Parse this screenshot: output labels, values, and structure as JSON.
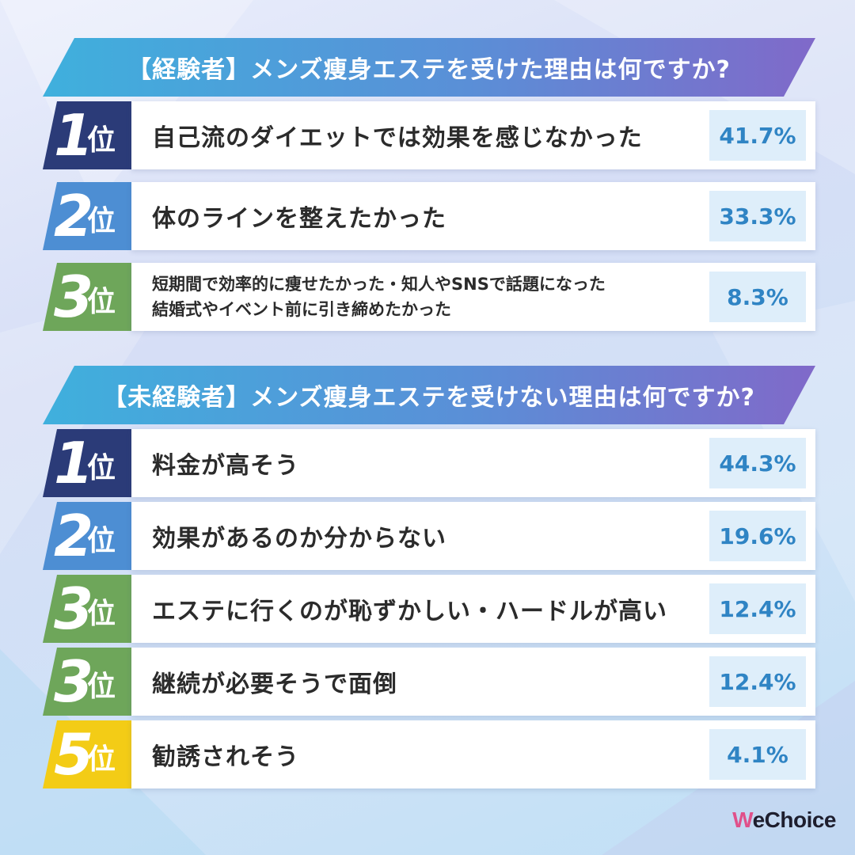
{
  "chart_data": [
    {
      "type": "table",
      "title": "【経験者】メンズ痩身エステを受けた理由は何ですか?",
      "rows": [
        {
          "rank": "1",
          "suffix": "位",
          "label": "自己流のダイエットでは効果を感じなかった",
          "value": 41.7,
          "value_label": "41.7%",
          "color": "#2b3b78"
        },
        {
          "rank": "2",
          "suffix": "位",
          "label": "体のラインを整えたかった",
          "value": 33.3,
          "value_label": "33.3%",
          "color": "#4d8ed3"
        },
        {
          "rank": "3",
          "suffix": "位",
          "label": "短期間で効率的に痩せたかった・知人やSNSで話題になった\n結婚式やイベント前に引き締めたかった",
          "value": 8.3,
          "value_label": "8.3%",
          "color": "#6ea65a"
        }
      ]
    },
    {
      "type": "table",
      "title": "【未経験者】メンズ痩身エステを受けない理由は何ですか?",
      "rows": [
        {
          "rank": "1",
          "suffix": "位",
          "label": "料金が高そう",
          "value": 44.3,
          "value_label": "44.3%",
          "color": "#2b3b78"
        },
        {
          "rank": "2",
          "suffix": "位",
          "label": "効果があるのか分からない",
          "value": 19.6,
          "value_label": "19.6%",
          "color": "#4d8ed3"
        },
        {
          "rank": "3",
          "suffix": "位",
          "label": "エステに行くのが恥ずかしい・ハードルが高い",
          "value": 12.4,
          "value_label": "12.4%",
          "color": "#6ea65a"
        },
        {
          "rank": "3",
          "suffix": "位",
          "label": "継続が必要そうで面倒",
          "value": 12.4,
          "value_label": "12.4%",
          "color": "#6ea65a"
        },
        {
          "rank": "5",
          "suffix": "位",
          "label": "勧誘されそう",
          "value": 4.1,
          "value_label": "4.1%",
          "color": "#f3cc16"
        }
      ]
    }
  ],
  "brand": {
    "logo_w": "W",
    "logo_rest": "eChoice"
  }
}
